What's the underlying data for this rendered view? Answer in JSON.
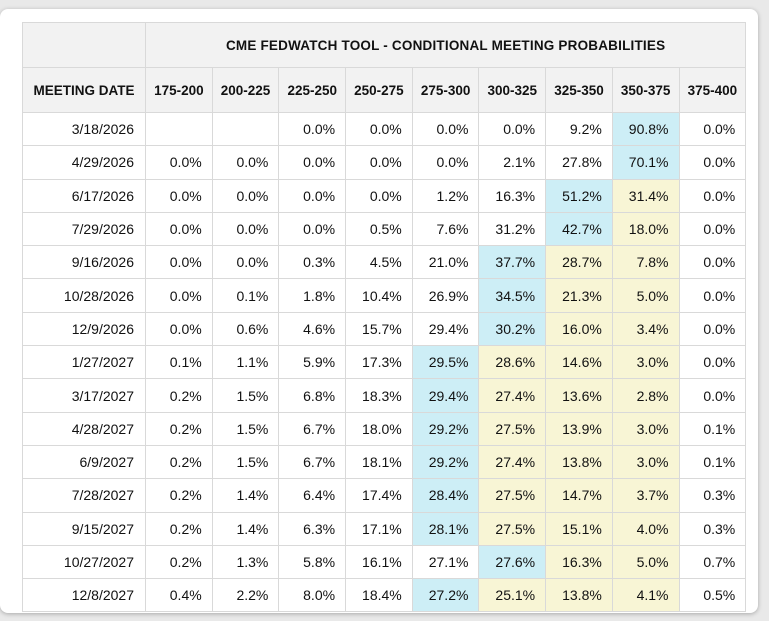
{
  "title": "CME FEDWATCH TOOL - CONDITIONAL MEETING PROBABILITIES",
  "colors": {
    "highlight_blue": "#cdeef6",
    "highlight_yellow": "#f8f5d5",
    "header_bg": "#f2f2f2",
    "border_gray": "#d9d9d9",
    "page_bg": "#e9e9e9"
  },
  "table": {
    "date_header": "MEETING DATE",
    "rate_headers": [
      "175-200",
      "200-225",
      "225-250",
      "250-275",
      "275-300",
      "300-325",
      "325-350",
      "350-375",
      "375-400"
    ],
    "rows": [
      {
        "date": "3/18/2026",
        "values": [
          "",
          "",
          "0.0%",
          "0.0%",
          "0.0%",
          "0.0%",
          "9.2%",
          "90.8%",
          "0.0%"
        ],
        "highlights": [
          "",
          "",
          "",
          "",
          "",
          "",
          "",
          "b",
          ""
        ]
      },
      {
        "date": "4/29/2026",
        "values": [
          "0.0%",
          "0.0%",
          "0.0%",
          "0.0%",
          "0.0%",
          "2.1%",
          "27.8%",
          "70.1%",
          "0.0%"
        ],
        "highlights": [
          "",
          "",
          "",
          "",
          "",
          "",
          "",
          "b",
          ""
        ]
      },
      {
        "date": "6/17/2026",
        "values": [
          "0.0%",
          "0.0%",
          "0.0%",
          "0.0%",
          "1.2%",
          "16.3%",
          "51.2%",
          "31.4%",
          "0.0%"
        ],
        "highlights": [
          "",
          "",
          "",
          "",
          "",
          "",
          "b",
          "y",
          ""
        ]
      },
      {
        "date": "7/29/2026",
        "values": [
          "0.0%",
          "0.0%",
          "0.0%",
          "0.5%",
          "7.6%",
          "31.2%",
          "42.7%",
          "18.0%",
          "0.0%"
        ],
        "highlights": [
          "",
          "",
          "",
          "",
          "",
          "",
          "b",
          "y",
          ""
        ]
      },
      {
        "date": "9/16/2026",
        "values": [
          "0.0%",
          "0.0%",
          "0.3%",
          "4.5%",
          "21.0%",
          "37.7%",
          "28.7%",
          "7.8%",
          "0.0%"
        ],
        "highlights": [
          "",
          "",
          "",
          "",
          "",
          "b",
          "y",
          "y",
          ""
        ]
      },
      {
        "date": "10/28/2026",
        "values": [
          "0.0%",
          "0.1%",
          "1.8%",
          "10.4%",
          "26.9%",
          "34.5%",
          "21.3%",
          "5.0%",
          "0.0%"
        ],
        "highlights": [
          "",
          "",
          "",
          "",
          "",
          "b",
          "y",
          "y",
          ""
        ]
      },
      {
        "date": "12/9/2026",
        "values": [
          "0.0%",
          "0.6%",
          "4.6%",
          "15.7%",
          "29.4%",
          "30.2%",
          "16.0%",
          "3.4%",
          "0.0%"
        ],
        "highlights": [
          "",
          "",
          "",
          "",
          "",
          "b",
          "y",
          "y",
          ""
        ]
      },
      {
        "date": "1/27/2027",
        "values": [
          "0.1%",
          "1.1%",
          "5.9%",
          "17.3%",
          "29.5%",
          "28.6%",
          "14.6%",
          "3.0%",
          "0.0%"
        ],
        "highlights": [
          "",
          "",
          "",
          "",
          "b",
          "y",
          "y",
          "y",
          ""
        ]
      },
      {
        "date": "3/17/2027",
        "values": [
          "0.2%",
          "1.5%",
          "6.8%",
          "18.3%",
          "29.4%",
          "27.4%",
          "13.6%",
          "2.8%",
          "0.0%"
        ],
        "highlights": [
          "",
          "",
          "",
          "",
          "b",
          "y",
          "y",
          "y",
          ""
        ]
      },
      {
        "date": "4/28/2027",
        "values": [
          "0.2%",
          "1.5%",
          "6.7%",
          "18.0%",
          "29.2%",
          "27.5%",
          "13.9%",
          "3.0%",
          "0.1%"
        ],
        "highlights": [
          "",
          "",
          "",
          "",
          "b",
          "y",
          "y",
          "y",
          ""
        ]
      },
      {
        "date": "6/9/2027",
        "values": [
          "0.2%",
          "1.5%",
          "6.7%",
          "18.1%",
          "29.2%",
          "27.4%",
          "13.8%",
          "3.0%",
          "0.1%"
        ],
        "highlights": [
          "",
          "",
          "",
          "",
          "b",
          "y",
          "y",
          "y",
          ""
        ]
      },
      {
        "date": "7/28/2027",
        "values": [
          "0.2%",
          "1.4%",
          "6.4%",
          "17.4%",
          "28.4%",
          "27.5%",
          "14.7%",
          "3.7%",
          "0.3%"
        ],
        "highlights": [
          "",
          "",
          "",
          "",
          "b",
          "y",
          "y",
          "y",
          ""
        ]
      },
      {
        "date": "9/15/2027",
        "values": [
          "0.2%",
          "1.4%",
          "6.3%",
          "17.1%",
          "28.1%",
          "27.5%",
          "15.1%",
          "4.0%",
          "0.3%"
        ],
        "highlights": [
          "",
          "",
          "",
          "",
          "b",
          "y",
          "y",
          "y",
          ""
        ]
      },
      {
        "date": "10/27/2027",
        "values": [
          "0.2%",
          "1.3%",
          "5.8%",
          "16.1%",
          "27.1%",
          "27.6%",
          "16.3%",
          "5.0%",
          "0.7%"
        ],
        "highlights": [
          "",
          "",
          "",
          "",
          "",
          "b",
          "y",
          "y",
          ""
        ]
      },
      {
        "date": "12/8/2027",
        "values": [
          "0.4%",
          "2.2%",
          "8.0%",
          "18.4%",
          "27.2%",
          "25.1%",
          "13.8%",
          "4.1%",
          "0.5%"
        ],
        "highlights": [
          "",
          "",
          "",
          "",
          "b",
          "y",
          "y",
          "y",
          ""
        ]
      }
    ]
  }
}
